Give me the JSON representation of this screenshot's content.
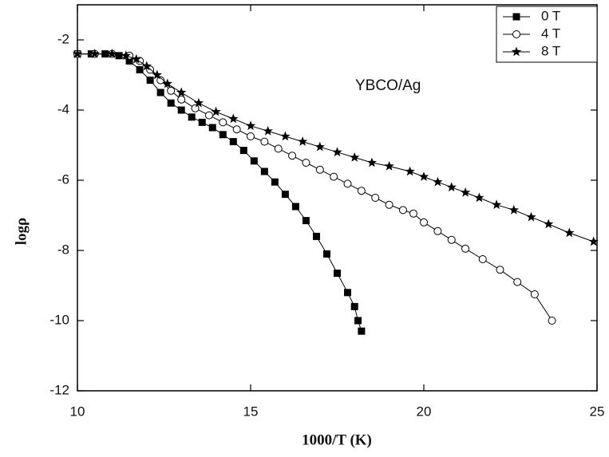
{
  "chart_data": {
    "type": "scatter",
    "x_label": "1000/T (K)",
    "y_label": "logρ",
    "annotation": "YBCO/Ag",
    "xlim": [
      10,
      25
    ],
    "xticks": [
      10,
      15,
      20,
      25
    ],
    "ylim": [
      -12,
      -1
    ],
    "yticks": [
      -2,
      -4,
      -6,
      -8,
      -10,
      -12
    ],
    "legend": "top-right",
    "series": [
      {
        "name": "0 T",
        "color": "#000000",
        "marker": "square",
        "x": [
          10,
          10.4,
          10.8,
          11.2,
          11.5,
          11.8,
          12.1,
          12.4,
          12.7,
          13,
          13.3,
          13.6,
          13.9,
          14.2,
          14.5,
          14.8,
          15.1,
          15.4,
          15.7,
          16,
          16.3,
          16.6,
          16.9,
          17.2,
          17.5,
          17.8,
          18,
          18.1,
          18.2
        ],
        "values": [
          -2.4,
          -2.4,
          -2.4,
          -2.45,
          -2.6,
          -2.85,
          -3.15,
          -3.5,
          -3.8,
          -4.0,
          -4.2,
          -4.35,
          -4.5,
          -4.7,
          -4.9,
          -5.15,
          -5.45,
          -5.75,
          -6.05,
          -6.4,
          -6.75,
          -7.15,
          -7.6,
          -8.1,
          -8.65,
          -9.2,
          -9.6,
          -10.0,
          -10.3
        ]
      },
      {
        "name": "4 T",
        "color": "#000000",
        "marker": "circle",
        "x": [
          10,
          10.5,
          11,
          11.5,
          11.8,
          12.1,
          12.4,
          12.7,
          13,
          13.4,
          13.8,
          14.2,
          14.6,
          15,
          15.4,
          15.8,
          16.2,
          16.6,
          17,
          17.4,
          17.8,
          18.2,
          18.6,
          19,
          19.4,
          19.7,
          20,
          20.4,
          20.8,
          21.2,
          21.7,
          22.2,
          22.7,
          23.2,
          23.7
        ],
        "values": [
          -2.4,
          -2.4,
          -2.4,
          -2.45,
          -2.6,
          -2.85,
          -3.15,
          -3.45,
          -3.7,
          -3.95,
          -4.15,
          -4.35,
          -4.55,
          -4.75,
          -4.9,
          -5.1,
          -5.3,
          -5.5,
          -5.7,
          -5.9,
          -6.1,
          -6.3,
          -6.5,
          -6.7,
          -6.85,
          -6.95,
          -7.2,
          -7.45,
          -7.7,
          -7.95,
          -8.25,
          -8.55,
          -8.9,
          -9.25,
          -10.0
        ]
      },
      {
        "name": "8 T",
        "color": "#000000",
        "marker": "star",
        "x": [
          10,
          10.5,
          11,
          11.4,
          11.7,
          12,
          12.3,
          12.6,
          13,
          13.5,
          14,
          14.5,
          15,
          15.5,
          16,
          16.5,
          17,
          17.5,
          18,
          18.5,
          19,
          19.6,
          20,
          20.4,
          20.8,
          21.2,
          21.6,
          22.1,
          22.6,
          23.1,
          23.6,
          24.2,
          24.9
        ],
        "values": [
          -2.4,
          -2.4,
          -2.4,
          -2.45,
          -2.55,
          -2.75,
          -3.0,
          -3.25,
          -3.5,
          -3.8,
          -4.05,
          -4.25,
          -4.45,
          -4.6,
          -4.75,
          -4.9,
          -5.05,
          -5.2,
          -5.35,
          -5.5,
          -5.6,
          -5.75,
          -5.9,
          -6.05,
          -6.2,
          -6.35,
          -6.5,
          -6.7,
          -6.85,
          -7.05,
          -7.25,
          -7.5,
          -7.75
        ]
      }
    ]
  }
}
